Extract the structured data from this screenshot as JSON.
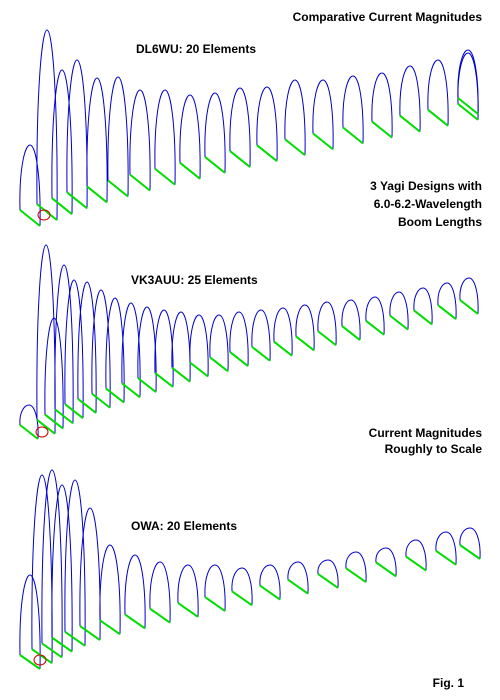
{
  "title": "Comparative Current Magnitudes",
  "designs": [
    {
      "label": "DL6WU: 20 Elements",
      "elements": 20
    },
    {
      "label": "VK3AUU: 25 Elements",
      "elements": 25
    },
    {
      "label": "OWA: 20 Elements",
      "elements": 20
    }
  ],
  "notes": {
    "yagi": [
      "3 Yagi Designs with",
      "6.0-6.2-Wavelength",
      "Boom Lengths"
    ],
    "scale": [
      "Current Magnitudes",
      "Roughly to Scale"
    ]
  },
  "figure": "Fig. 1",
  "colors": {
    "current_curve": "#0000cc",
    "element": "#00dd00",
    "driven_marker": "#cc0000"
  }
}
